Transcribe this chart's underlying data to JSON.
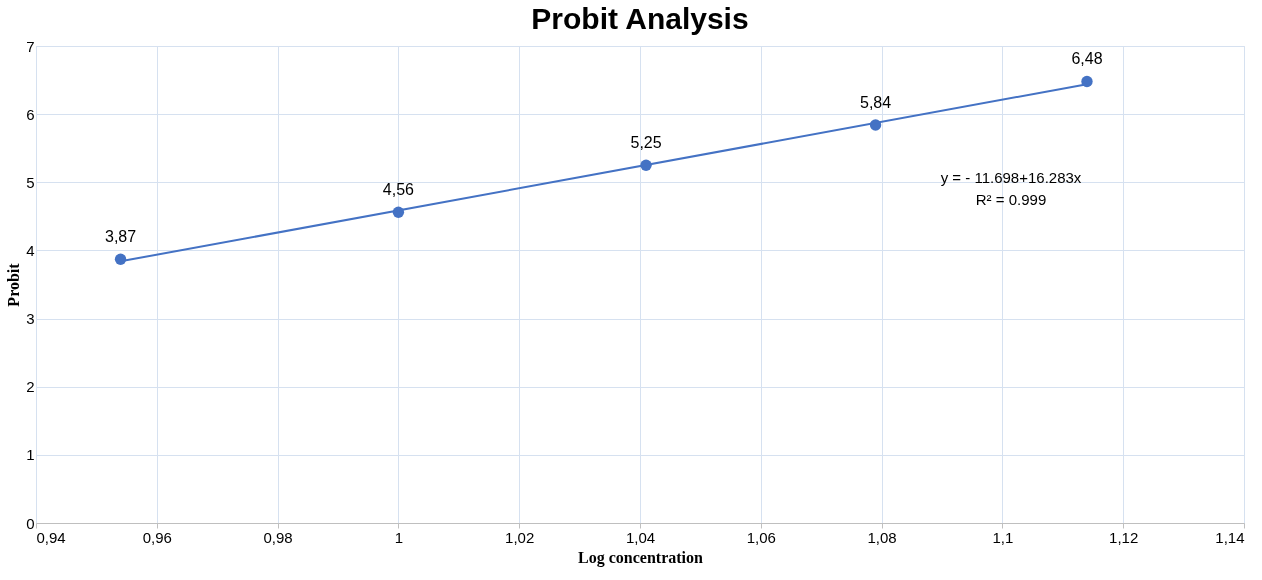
{
  "chart_data": {
    "type": "scatter",
    "title": "Probit Analysis",
    "xlabel": "Log concentration",
    "ylabel": "Probit",
    "xlim": [
      0.94,
      1.14
    ],
    "xticks": [
      {
        "value": 0.94,
        "label": "0,94"
      },
      {
        "value": 0.96,
        "label": "0,96"
      },
      {
        "value": 0.98,
        "label": "0,98"
      },
      1,
      {
        "value": 1.02,
        "label": "1,02"
      },
      {
        "value": 1.04,
        "label": "1,04"
      },
      {
        "value": 1.06,
        "label": "1,06"
      },
      {
        "value": 1.08,
        "label": "1,08"
      },
      {
        "value": 1.1,
        "label": "1,1"
      },
      {
        "value": 1.12,
        "label": "1,12"
      },
      {
        "value": 1.14,
        "label": "1,14"
      }
    ],
    "ylim": [
      0,
      7
    ],
    "yticks": [
      0,
      1,
      2,
      3,
      4,
      5,
      6,
      7
    ],
    "grid": true,
    "marker": "circle",
    "series": [
      {
        "color": "#4472c4",
        "x": [
          0.954,
          1.0,
          1.041,
          1.079,
          1.114
        ],
        "values": [
          3.87,
          4.56,
          5.25,
          5.84,
          6.48
        ],
        "value_labels": [
          "3,87",
          "4,56",
          "5,25",
          "5,84",
          "6,48"
        ]
      },
      {
        "type": "line",
        "marker": "none",
        "color": "#4472c4",
        "x": [
          0.954,
          1.114
        ],
        "values": [
          3.84,
          6.44
        ]
      }
    ],
    "annotations": [
      "y = - 11.698+16.283x",
      "R² = 0.999"
    ]
  }
}
